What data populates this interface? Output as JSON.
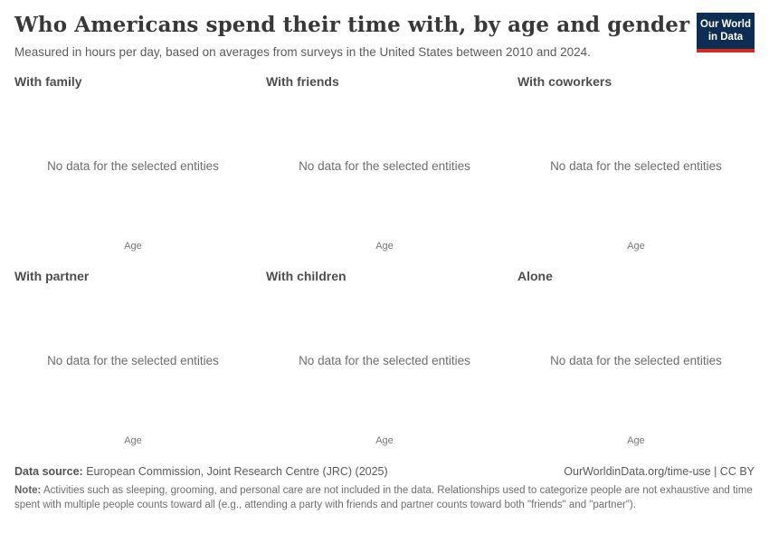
{
  "header": {
    "title": "Who Americans spend their time with, by age and gender",
    "subtitle": "Measured in hours per day, based on averages from surveys in the United States between 2010 and 2024.",
    "logo": {
      "line1": "Our World",
      "line2": "in Data"
    }
  },
  "panels": [
    {
      "title": "With family",
      "message": "No data for the selected entities",
      "xlabel": "Age"
    },
    {
      "title": "With friends",
      "message": "No data for the selected entities",
      "xlabel": "Age"
    },
    {
      "title": "With coworkers",
      "message": "No data for the selected entities",
      "xlabel": "Age"
    },
    {
      "title": "With partner",
      "message": "No data for the selected entities",
      "xlabel": "Age"
    },
    {
      "title": "With children",
      "message": "No data for the selected entities",
      "xlabel": "Age"
    },
    {
      "title": "Alone",
      "message": "No data for the selected entities",
      "xlabel": "Age"
    }
  ],
  "chart_data": [
    {
      "type": "line",
      "title": "With family",
      "xlabel": "Age",
      "series": [],
      "status": "No data for the selected entities"
    },
    {
      "type": "line",
      "title": "With friends",
      "xlabel": "Age",
      "series": [],
      "status": "No data for the selected entities"
    },
    {
      "type": "line",
      "title": "With coworkers",
      "xlabel": "Age",
      "series": [],
      "status": "No data for the selected entities"
    },
    {
      "type": "line",
      "title": "With partner",
      "xlabel": "Age",
      "series": [],
      "status": "No data for the selected entities"
    },
    {
      "type": "line",
      "title": "With children",
      "xlabel": "Age",
      "series": [],
      "status": "No data for the selected entities"
    },
    {
      "type": "line",
      "title": "Alone",
      "xlabel": "Age",
      "series": [],
      "status": "No data for the selected entities"
    }
  ],
  "footer": {
    "source_label": "Data source:",
    "source_text": " European Commission, Joint Research Centre (JRC) (2025)",
    "link_text": "OurWorldinData.org/time-use | CC BY",
    "note_label": "Note:",
    "note_text": " Activities such as sleeping, grooming, and personal care are not included in the data. Relationships used to categorize people are not exhaustive and time spent with multiple people counts toward all (e.g., attending a party with friends and partner counts toward both \"friends\" and \"partner\")."
  },
  "colors": {
    "logo_navy": "#0d2e52",
    "logo_red": "#d42b21",
    "title_text": "#383838",
    "muted_text": "#6e6e6e",
    "background": "#ffffff"
  }
}
